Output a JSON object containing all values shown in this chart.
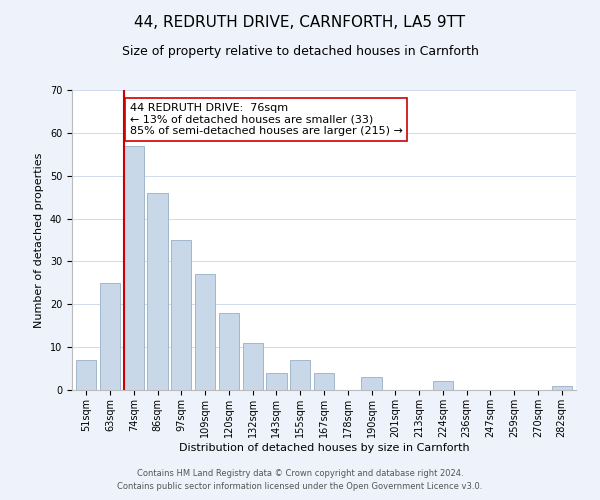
{
  "title": "44, REDRUTH DRIVE, CARNFORTH, LA5 9TT",
  "subtitle": "Size of property relative to detached houses in Carnforth",
  "xlabel": "Distribution of detached houses by size in Carnforth",
  "ylabel": "Number of detached properties",
  "bin_labels": [
    "51sqm",
    "63sqm",
    "74sqm",
    "86sqm",
    "97sqm",
    "109sqm",
    "120sqm",
    "132sqm",
    "143sqm",
    "155sqm",
    "167sqm",
    "178sqm",
    "190sqm",
    "201sqm",
    "213sqm",
    "224sqm",
    "236sqm",
    "247sqm",
    "259sqm",
    "270sqm",
    "282sqm"
  ],
  "bar_heights": [
    7,
    25,
    57,
    46,
    35,
    27,
    18,
    11,
    4,
    7,
    4,
    0,
    3,
    0,
    0,
    2,
    0,
    0,
    0,
    0,
    1
  ],
  "bar_color": "#c8d8e8",
  "bar_edge_color": "#a0b8cc",
  "highlight_color": "#cc0000",
  "annotation_text": "44 REDRUTH DRIVE:  76sqm\n← 13% of detached houses are smaller (33)\n85% of semi-detached houses are larger (215) →",
  "annotation_box_color": "#ffffff",
  "annotation_box_edge": "#cc0000",
  "ylim": [
    0,
    70
  ],
  "yticks": [
    0,
    10,
    20,
    30,
    40,
    50,
    60,
    70
  ],
  "footer_line1": "Contains HM Land Registry data © Crown copyright and database right 2024.",
  "footer_line2": "Contains public sector information licensed under the Open Government Licence v3.0.",
  "bg_color": "#eef2fa",
  "plot_bg_color": "#ffffff",
  "title_fontsize": 11,
  "subtitle_fontsize": 9,
  "axis_label_fontsize": 8,
  "tick_fontsize": 7,
  "footer_fontsize": 6,
  "annotation_fontsize": 8
}
